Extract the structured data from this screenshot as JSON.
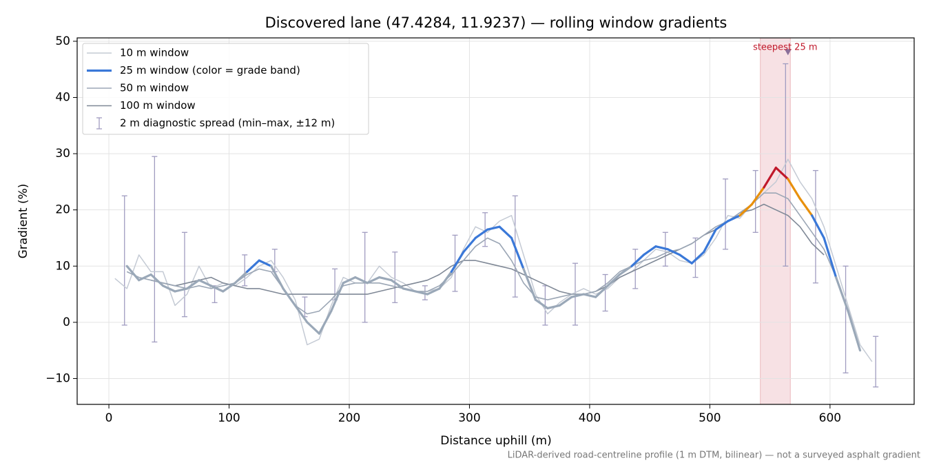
{
  "chart_data": {
    "type": "line",
    "title": "Discovered lane (47.4284, 11.9237) — rolling window gradients",
    "x_label": "Distance uphill (m)",
    "y_label": "Gradient (%)",
    "footnote": "LiDAR-derived road-centreline profile (1 m DTM, bilinear) — not a surveyed asphalt gradient",
    "xlim": [
      -26.4,
      670
    ],
    "ylim": [
      -14.6,
      50.6
    ],
    "xticks": [
      0,
      100,
      200,
      300,
      400,
      500,
      600
    ],
    "yticks": [
      {
        "value": -10,
        "label": "−10"
      },
      0,
      10,
      20,
      30,
      40,
      50
    ],
    "grid": true,
    "legend": "upper left",
    "x": [
      5,
      15,
      25,
      35,
      45,
      55,
      65,
      75,
      85,
      95,
      105,
      115,
      125,
      135,
      145,
      155,
      165,
      175,
      185,
      195,
      205,
      215,
      225,
      235,
      245,
      255,
      265,
      275,
      285,
      295,
      305,
      315,
      325,
      335,
      345,
      355,
      365,
      375,
      385,
      395,
      405,
      415,
      425,
      435,
      445,
      455,
      465,
      475,
      485,
      495,
      505,
      515,
      525,
      535,
      545,
      555,
      565,
      575,
      585,
      595,
      605,
      615,
      625,
      635
    ],
    "series": [
      {
        "name": "10 m window",
        "color": "#c4cad4",
        "width": 1.5,
        "values": [
          7.8,
          6,
          12,
          9,
          9,
          3,
          5,
          10,
          6,
          7,
          6.5,
          8,
          10,
          11,
          8,
          4,
          -4,
          -3,
          3,
          8,
          7,
          7,
          10,
          8,
          7,
          5.5,
          5.5,
          6,
          8,
          13,
          17,
          16,
          18,
          19,
          12,
          5,
          1.5,
          3.5,
          5,
          6,
          5,
          6,
          8,
          9,
          11,
          13,
          12.5,
          11,
          10.5,
          12,
          15,
          19,
          18.5,
          21,
          23,
          25,
          29,
          25,
          22,
          17,
          10,
          3,
          -4,
          -7
        ]
      },
      {
        "name": "25 m window (color = grade band)",
        "color": "#3a78d8",
        "width": 3.2,
        "band_edges": [
          10,
          20,
          25
        ],
        "band_colors": [
          "#9aa8b8",
          "#3a78d8",
          "#e8900c",
          "#c0192b"
        ],
        "values": [
          null,
          10,
          7.5,
          8.5,
          6.5,
          5.5,
          6,
          7.5,
          6.5,
          5.5,
          7,
          9,
          11,
          10,
          6,
          3,
          0,
          -2,
          2,
          7,
          8,
          7,
          8,
          7.5,
          6,
          5.5,
          5,
          6,
          9,
          12.5,
          15,
          16.5,
          17,
          15,
          9.5,
          4,
          2.5,
          3,
          4.5,
          5,
          4.5,
          6.5,
          8.5,
          10,
          12,
          13.5,
          13,
          12,
          10.5,
          12.5,
          16.5,
          18,
          19,
          21,
          24,
          27.5,
          25.5,
          22,
          19,
          15,
          8,
          2,
          -5,
          null
        ]
      },
      {
        "name": "50 m window",
        "color": "#9ba6b5",
        "width": 1.6,
        "values": [
          null,
          9,
          8,
          7.5,
          7,
          6.5,
          6,
          6.5,
          6,
          6.5,
          7,
          8.5,
          9.5,
          9,
          6,
          3,
          1.5,
          2,
          4,
          6.5,
          7,
          7,
          7,
          6.5,
          6,
          5.5,
          5.5,
          6.5,
          8.5,
          11,
          13.5,
          15,
          14,
          11,
          7,
          4.5,
          4,
          4.5,
          5,
          5,
          5.5,
          7,
          9,
          10,
          11,
          11.5,
          12.5,
          13,
          14,
          15.5,
          17,
          18,
          19.5,
          21,
          23,
          23,
          22,
          19,
          16,
          13,
          8,
          2,
          null,
          null
        ]
      },
      {
        "name": "100 m window",
        "color": "#7f8896",
        "width": 1.6,
        "values": [
          null,
          null,
          null,
          7.5,
          7,
          6.5,
          7,
          7.5,
          8,
          7,
          6.5,
          6,
          6,
          5.5,
          5,
          5,
          5,
          5,
          5,
          5,
          5,
          5,
          5.5,
          6,
          6.5,
          7,
          7.5,
          8.5,
          10,
          11,
          11,
          10.5,
          10,
          9.5,
          8.5,
          7.5,
          6.5,
          5.5,
          5,
          5,
          5.5,
          6.5,
          8,
          9,
          10,
          11,
          12,
          13,
          14,
          15.5,
          16.5,
          18,
          19.5,
          20,
          21,
          20,
          19,
          17,
          14,
          12,
          null,
          null,
          null,
          null
        ]
      }
    ],
    "errorbars": {
      "name": "2 m diagnostic spread (min–max, ±12 m)",
      "color": "#a09cc0",
      "x": [
        13,
        38,
        63,
        88,
        113,
        138,
        163,
        188,
        213,
        238,
        263,
        288,
        313,
        338,
        363,
        388,
        413,
        438,
        463,
        488,
        513,
        538,
        563,
        588,
        613,
        638
      ],
      "low": [
        -0.5,
        -3.5,
        1,
        3.5,
        6.5,
        9,
        1,
        4,
        0,
        3.5,
        4,
        5.5,
        13.5,
        4.5,
        -0.5,
        -0.5,
        2,
        6,
        10,
        8,
        13,
        16,
        10,
        7,
        -9,
        -11.5
      ],
      "high": [
        22.5,
        29.5,
        16,
        6.5,
        12,
        13,
        4.5,
        9.5,
        16,
        12.5,
        6.5,
        15.5,
        19.5,
        22.5,
        6.5,
        10.5,
        8.5,
        13,
        16,
        15,
        25.5,
        27,
        46,
        27,
        10,
        -2.5
      ]
    },
    "highlight": {
      "label": "steepest 25 m",
      "x_range": [
        542,
        567
      ],
      "x": 565,
      "y": 48,
      "color": "#c0192b"
    }
  }
}
